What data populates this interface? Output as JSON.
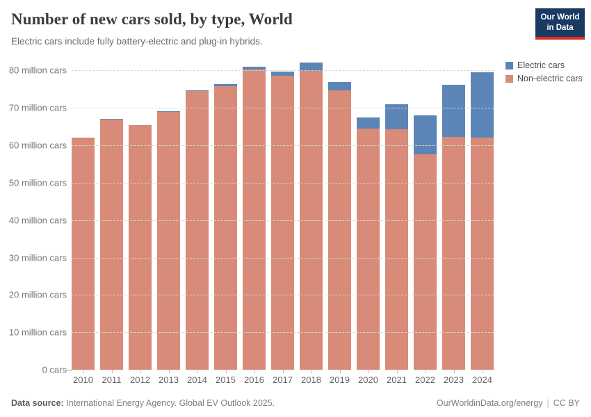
{
  "header": {
    "title": "Number of new cars sold, by type, World",
    "subtitle": "Electric cars include fully battery-electric and plug-in hybrids."
  },
  "logo": {
    "line1": "Our World",
    "line2": "in Data",
    "bg_color": "#183a63",
    "accent_color": "#dc2d20"
  },
  "legend": [
    {
      "label": "Electric cars",
      "color": "#5b85b7"
    },
    {
      "label": "Non-electric cars",
      "color": "#d78b78"
    }
  ],
  "chart_data": {
    "type": "bar",
    "stacked": true,
    "title": "Number of new cars sold, by type, World",
    "subtitle": "Electric cars include fully battery-electric and plug-in hybrids.",
    "unit": "million cars",
    "categories": [
      "2010",
      "2011",
      "2012",
      "2013",
      "2014",
      "2015",
      "2016",
      "2017",
      "2018",
      "2019",
      "2020",
      "2021",
      "2022",
      "2023",
      "2024"
    ],
    "series": [
      {
        "name": "Electric cars",
        "color": "#5b85b7",
        "values": [
          0.01,
          0.05,
          0.12,
          0.2,
          0.32,
          0.55,
          0.75,
          1.2,
          2.1,
          2.2,
          3.0,
          6.6,
          10.4,
          13.9,
          17.5
        ]
      },
      {
        "name": "Non-electric cars",
        "color": "#d78b78",
        "values": [
          62.0,
          66.9,
          65.3,
          68.9,
          74.4,
          75.7,
          80.3,
          78.5,
          79.9,
          74.6,
          64.4,
          64.3,
          57.6,
          62.2,
          62.0
        ]
      }
    ],
    "totals_approx": [
      62.0,
      67.0,
      65.4,
      69.1,
      74.7,
      76.3,
      81.1,
      79.7,
      82.0,
      76.8,
      67.4,
      70.9,
      68.0,
      76.1,
      79.5
    ],
    "ylim": [
      0,
      80
    ],
    "yticks": [
      {
        "value": 0,
        "label": "0 cars"
      },
      {
        "value": 10,
        "label": "10 million cars"
      },
      {
        "value": 20,
        "label": "20 million cars"
      },
      {
        "value": 30,
        "label": "30 million cars"
      },
      {
        "value": 40,
        "label": "40 million cars"
      },
      {
        "value": 50,
        "label": "50 million cars"
      },
      {
        "value": 60,
        "label": "60 million cars"
      },
      {
        "value": 70,
        "label": "70 million cars"
      },
      {
        "value": 80,
        "label": "80 million cars"
      }
    ],
    "grid": "horizontal-dashed",
    "legend_position": "top-right"
  },
  "footer": {
    "source_label": "Data source:",
    "source_text": "International Energy Agency. Global EV Outlook 2025.",
    "link": "OurWorldinData.org/energy",
    "separator": "|",
    "license": "CC BY"
  }
}
